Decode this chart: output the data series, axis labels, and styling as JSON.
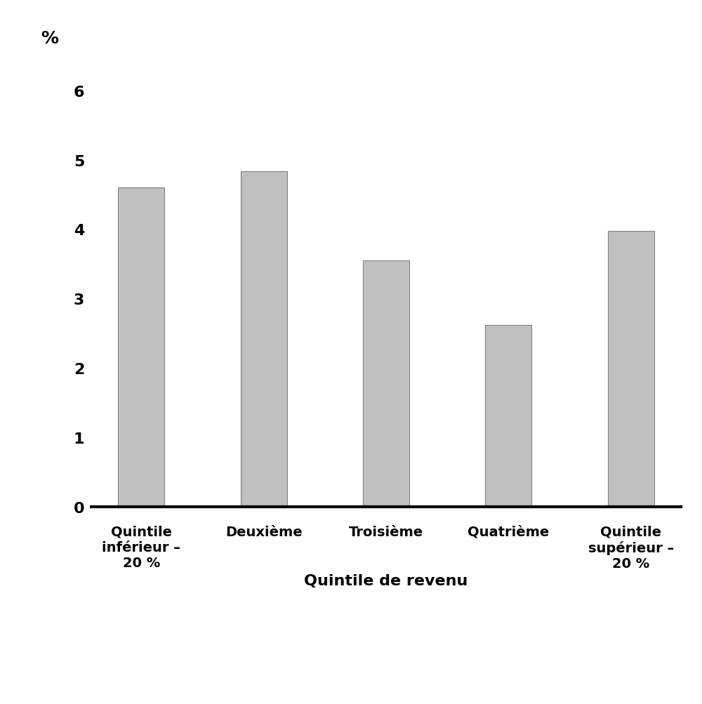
{
  "categories": [
    "Quintile\ninférieur –\n20 %",
    "Deuxième",
    "Troisième",
    "Quatrième",
    "Quintile\nsupérieur –\n20 %"
  ],
  "values": [
    4.6,
    4.83,
    3.55,
    2.62,
    3.97
  ],
  "bar_color": "#c0c0c0",
  "bar_edgecolor": "#808080",
  "ylabel": "%",
  "xlabel": "Quintile de revenu",
  "ylim": [
    0,
    6.5
  ],
  "yticks": [
    0,
    1,
    2,
    3,
    4,
    5,
    6
  ],
  "background_color": "#ffffff",
  "bar_width": 0.38,
  "ylabel_fontsize": 18,
  "xlabel_fontsize": 16,
  "tick_fontsize": 16,
  "xtick_fontsize": 14,
  "font_weight": "bold"
}
